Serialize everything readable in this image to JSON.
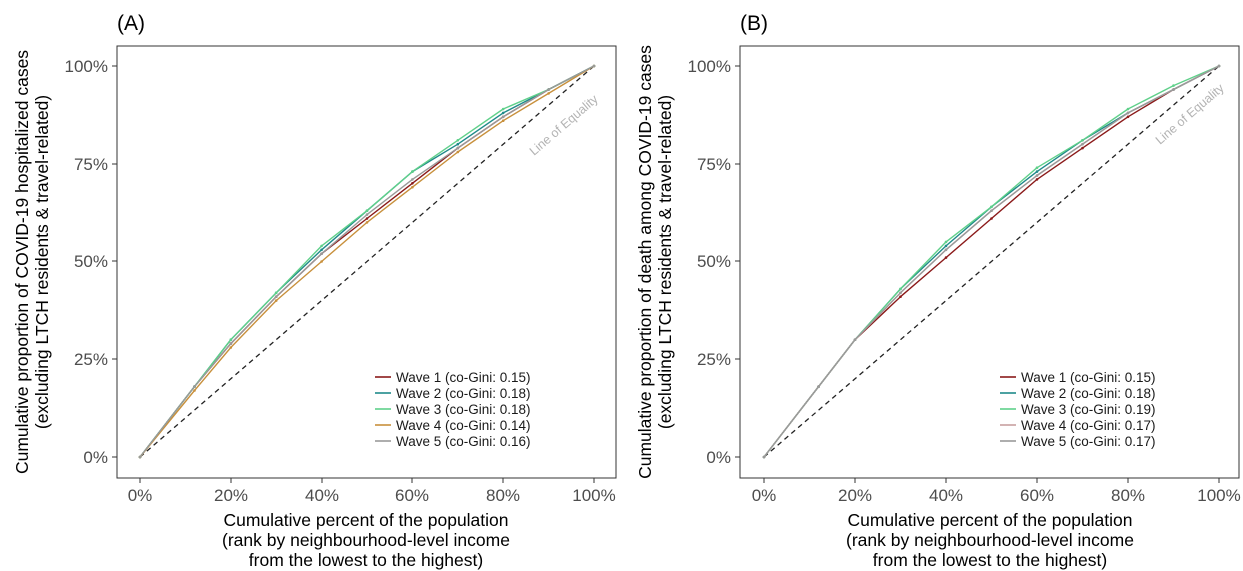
{
  "chart_data": [
    {
      "type": "line",
      "panel_label": "(A)",
      "xlabel": [
        "Cumulative percent of the population",
        "(rank by neighbourhood-level income",
        "from the lowest to the highest)"
      ],
      "ylabel": [
        "Cumulative proportion of COVID-19 hospitalized cases",
        "(excluding LTCH residents & travel-related)"
      ],
      "xlim": [
        0,
        100
      ],
      "ylim": [
        0,
        100
      ],
      "x_ticks": [
        "0%",
        "20%",
        "40%",
        "60%",
        "80%",
        "100%"
      ],
      "y_ticks": [
        "0%",
        "25%",
        "50%",
        "75%",
        "100%"
      ],
      "equality_label": "Line of Equality",
      "legend_position": "bottom-right",
      "grid": false,
      "series": [
        {
          "name": "Wave 1 (co-Gini: 0.15)",
          "color": "#8b1a1a",
          "x": [
            0,
            12,
            20,
            30,
            40,
            50,
            60,
            70,
            80,
            90,
            100
          ],
          "y": [
            0,
            18,
            29,
            41,
            52,
            61,
            70,
            79,
            87,
            94,
            100
          ]
        },
        {
          "name": "Wave 2 (co-Gini: 0.18)",
          "color": "#1f8a8a",
          "x": [
            0,
            12,
            20,
            30,
            40,
            50,
            60,
            70,
            80,
            90,
            100
          ],
          "y": [
            0,
            18,
            30,
            42,
            53,
            63,
            73,
            80,
            88,
            94,
            100
          ]
        },
        {
          "name": "Wave 3 (co-Gini: 0.18)",
          "color": "#5fd08a",
          "x": [
            0,
            12,
            20,
            30,
            40,
            50,
            60,
            70,
            80,
            90,
            100
          ],
          "y": [
            0,
            18,
            30,
            42,
            54,
            63,
            73,
            81,
            89,
            94,
            100
          ]
        },
        {
          "name": "Wave 4 (co-Gini: 0.14)",
          "color": "#c8903c",
          "x": [
            0,
            12,
            20,
            30,
            40,
            50,
            60,
            70,
            80,
            90,
            100
          ],
          "y": [
            0,
            17,
            28,
            40,
            50,
            60,
            69,
            78,
            86,
            93,
            100
          ]
        },
        {
          "name": "Wave 5 (co-Gini: 0.16)",
          "color": "#9a9a9a",
          "x": [
            0,
            12,
            20,
            30,
            40,
            50,
            60,
            70,
            80,
            90,
            100
          ],
          "y": [
            0,
            18,
            29,
            41,
            52,
            62,
            71,
            79,
            87,
            94,
            100
          ]
        }
      ]
    },
    {
      "type": "line",
      "panel_label": "(B)",
      "xlabel": [
        "Cumulative percent of the population",
        "(rank by neighbourhood-level income",
        "from the lowest to the highest)"
      ],
      "ylabel": [
        "Cumulative proportion of death among COVID-19 cases",
        "(excluding LTCH residents & travel-related)"
      ],
      "xlim": [
        0,
        100
      ],
      "ylim": [
        0,
        100
      ],
      "x_ticks": [
        "0%",
        "20%",
        "40%",
        "60%",
        "80%",
        "100%"
      ],
      "y_ticks": [
        "0%",
        "25%",
        "50%",
        "75%",
        "100%"
      ],
      "equality_label": "Line of Equality",
      "legend_position": "bottom-right",
      "grid": false,
      "series": [
        {
          "name": "Wave 1 (co-Gini: 0.15)",
          "color": "#8b1a1a",
          "x": [
            0,
            12,
            20,
            30,
            40,
            50,
            60,
            70,
            80,
            90,
            100
          ],
          "y": [
            0,
            18,
            30,
            41,
            51,
            61,
            71,
            79,
            87,
            94,
            100
          ]
        },
        {
          "name": "Wave 2 (co-Gini: 0.18)",
          "color": "#1f8a8a",
          "x": [
            0,
            12,
            20,
            30,
            40,
            50,
            60,
            70,
            80,
            90,
            100
          ],
          "y": [
            0,
            18,
            30,
            43,
            54,
            64,
            73,
            81,
            88,
            94,
            100
          ]
        },
        {
          "name": "Wave 3 (co-Gini: 0.19)",
          "color": "#5fd08a",
          "x": [
            0,
            12,
            20,
            30,
            40,
            50,
            60,
            70,
            80,
            90,
            100
          ],
          "y": [
            0,
            18,
            30,
            43,
            55,
            64,
            74,
            81,
            89,
            95,
            100
          ]
        },
        {
          "name": "Wave 4 (co-Gini: 0.17)",
          "color": "#c8a0a0",
          "x": [
            0,
            12,
            20,
            30,
            40,
            50,
            60,
            70,
            80,
            90,
            100
          ],
          "y": [
            0,
            18,
            30,
            42,
            53,
            63,
            72,
            80,
            88,
            94,
            100
          ]
        },
        {
          "name": "Wave 5 (co-Gini: 0.17)",
          "color": "#9a9a9a",
          "x": [
            0,
            12,
            20,
            30,
            40,
            50,
            60,
            70,
            80,
            90,
            100
          ],
          "y": [
            0,
            18,
            30,
            42,
            53,
            63,
            72,
            80,
            88,
            94,
            100
          ]
        }
      ]
    }
  ]
}
